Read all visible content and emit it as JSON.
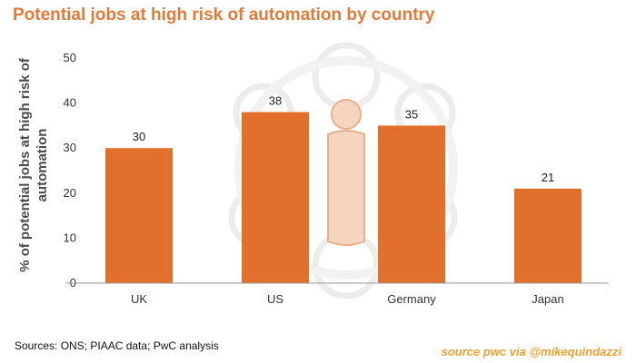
{
  "title": "Potential jobs at high risk of automation by country",
  "sources": "Sources: ONS; PIAAC data; PwC analysis",
  "watermark": "source pwc via @mikequindazzi",
  "colors": {
    "title": "#e07b39",
    "bar": "#e0702b",
    "axis": "#4d4d4d",
    "watermark": "#f0a030"
  },
  "chart_data": {
    "type": "bar",
    "categories": [
      "UK",
      "US",
      "Germany",
      "Japan"
    ],
    "values": [
      30,
      38,
      35,
      21
    ],
    "ylabel": "% of potential jobs at high risk of automation",
    "ylim": [
      0,
      50
    ],
    "yticks": [
      0,
      10,
      20,
      30,
      40,
      50
    ],
    "data_labels": true,
    "grid": false
  }
}
